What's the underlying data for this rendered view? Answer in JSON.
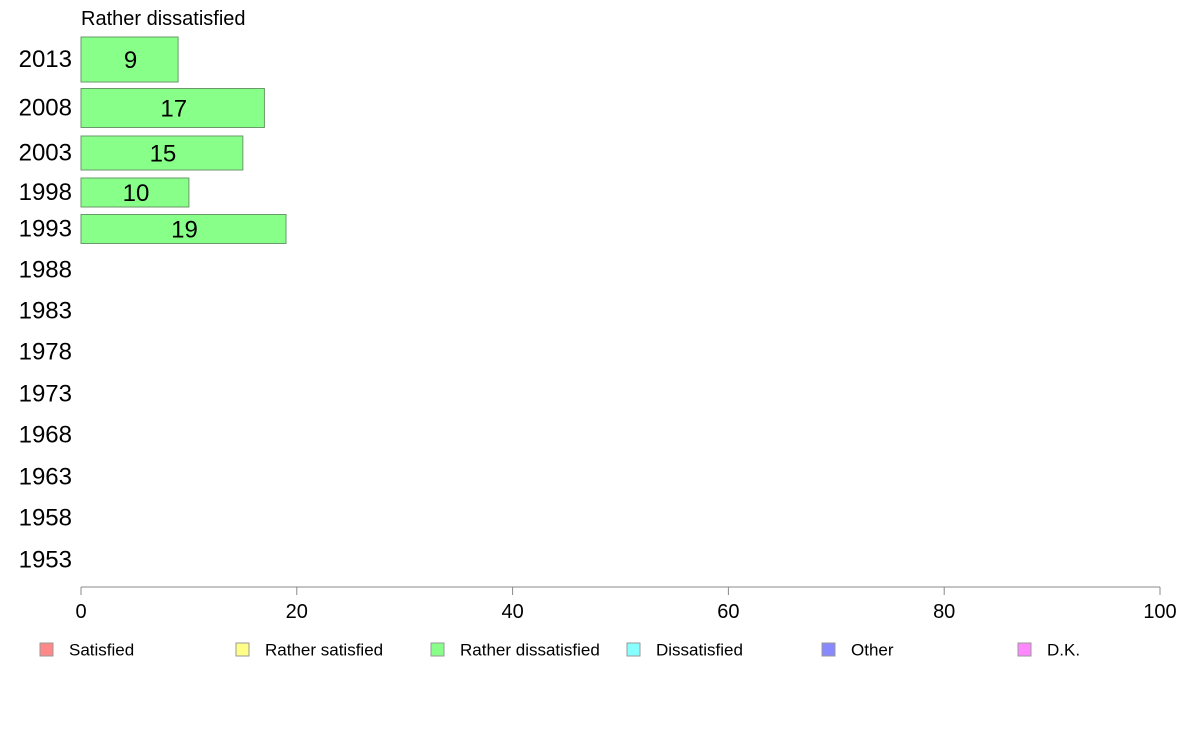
{
  "chart_data": {
    "type": "bar",
    "orientation": "horizontal",
    "title": "Rather dissatisfied",
    "xlabel": "",
    "ylabel": "",
    "xlim": [
      0,
      100
    ],
    "xticks": [
      "0",
      "20",
      "40",
      "60",
      "80",
      "100"
    ],
    "grid": false,
    "legend_position": "bottom",
    "categories": [
      "2013",
      "2008",
      "2003",
      "1998",
      "1993",
      "1988",
      "1983",
      "1978",
      "1973",
      "1968",
      "1963",
      "1958",
      "1953"
    ],
    "series": [
      {
        "name": "Rather dissatisfied",
        "color": "#88ff88",
        "values": [
          9,
          17,
          15,
          10,
          19,
          null,
          null,
          null,
          null,
          null,
          null,
          null,
          null
        ],
        "labels": [
          "9",
          "17",
          "15",
          "10",
          "19",
          "",
          "",
          "",
          "",
          "",
          "",
          "",
          ""
        ]
      }
    ],
    "legend": [
      {
        "label": "Satisfied",
        "color": "#ff8888"
      },
      {
        "label": "Rather satisfied",
        "color": "#ffff88"
      },
      {
        "label": "Rather dissatisfied",
        "color": "#88ff88"
      },
      {
        "label": "Dissatisfied",
        "color": "#88ffff"
      },
      {
        "label": "Other",
        "color": "#8888ff"
      },
      {
        "label": "D.K.",
        "color": "#ff88ff"
      }
    ]
  }
}
